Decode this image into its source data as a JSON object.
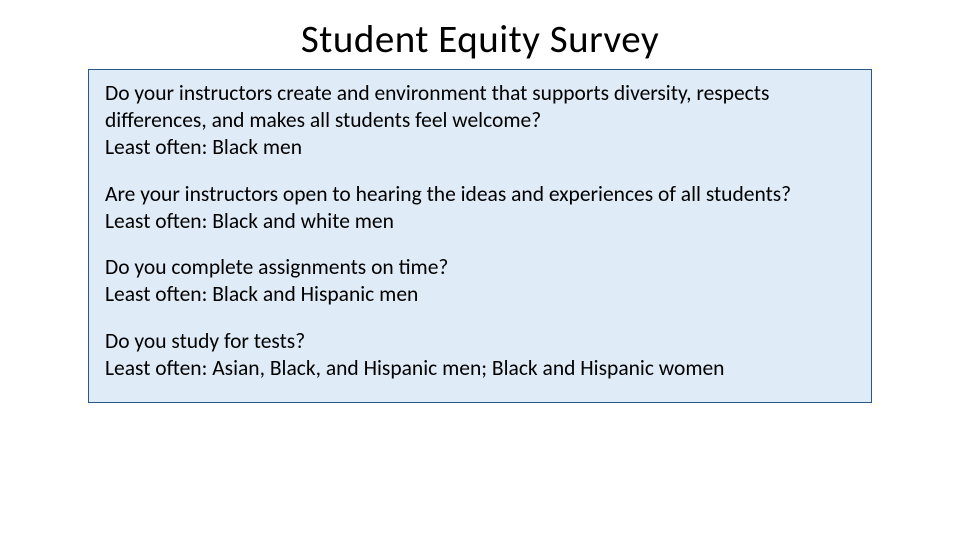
{
  "title": "Student Equity Survey",
  "content_box": {
    "background_color": "#dfebf6",
    "border_color": "#2a5985"
  },
  "items": [
    {
      "question": "Do your instructors create and environment that supports diversity, respects differences, and makes all students feel welcome?",
      "answer_label": "Least often: ",
      "answer_value": "Black men"
    },
    {
      "question": "Are your instructors open to hearing the ideas and experiences of all students?",
      "answer_label": "Least often: ",
      "answer_value": "Black and white men"
    },
    {
      "question": "Do you complete assignments on time?",
      "answer_label": "Least often: ",
      "answer_value": "Black and Hispanic men"
    },
    {
      "question": "Do you study for tests?",
      "answer_label": "Least often: ",
      "answer_value": "Asian, Black, and Hispanic men; Black and Hispanic women"
    }
  ],
  "typography": {
    "title_fontsize": 39,
    "body_fontsize": 21.5,
    "font_family": "Calibri"
  }
}
